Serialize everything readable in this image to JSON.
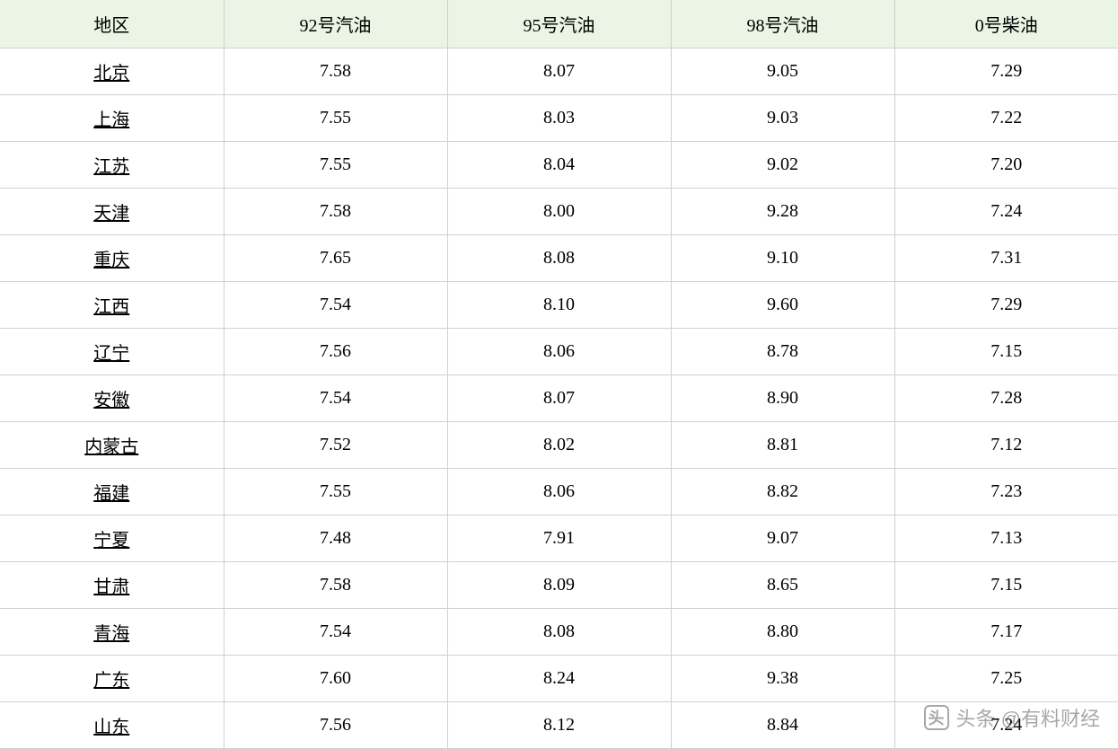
{
  "table": {
    "type": "table",
    "header_background": "#eaf5e5",
    "border_color": "#d0d0d0",
    "text_color": "#000000",
    "font_size": 20,
    "columns": [
      {
        "label": "地区",
        "is_link_column": true
      },
      {
        "label": "92号汽油",
        "is_link_column": false
      },
      {
        "label": "95号汽油",
        "is_link_column": false
      },
      {
        "label": "98号汽油",
        "is_link_column": false
      },
      {
        "label": "0号柴油",
        "is_link_column": false
      }
    ],
    "rows": [
      {
        "region": "北京",
        "p92": "7.58",
        "p95": "8.07",
        "p98": "9.05",
        "d0": "7.29"
      },
      {
        "region": "上海",
        "p92": "7.55",
        "p95": "8.03",
        "p98": "9.03",
        "d0": "7.22"
      },
      {
        "region": "江苏",
        "p92": "7.55",
        "p95": "8.04",
        "p98": "9.02",
        "d0": "7.20"
      },
      {
        "region": "天津",
        "p92": "7.58",
        "p95": "8.00",
        "p98": "9.28",
        "d0": "7.24"
      },
      {
        "region": "重庆",
        "p92": "7.65",
        "p95": "8.08",
        "p98": "9.10",
        "d0": "7.31"
      },
      {
        "region": "江西",
        "p92": "7.54",
        "p95": "8.10",
        "p98": "9.60",
        "d0": "7.29"
      },
      {
        "region": "辽宁",
        "p92": "7.56",
        "p95": "8.06",
        "p98": "8.78",
        "d0": "7.15"
      },
      {
        "region": "安徽",
        "p92": "7.54",
        "p95": "8.07",
        "p98": "8.90",
        "d0": "7.28"
      },
      {
        "region": "内蒙古",
        "p92": "7.52",
        "p95": "8.02",
        "p98": "8.81",
        "d0": "7.12"
      },
      {
        "region": "福建",
        "p92": "7.55",
        "p95": "8.06",
        "p98": "8.82",
        "d0": "7.23"
      },
      {
        "region": "宁夏",
        "p92": "7.48",
        "p95": "7.91",
        "p98": "9.07",
        "d0": "7.13"
      },
      {
        "region": "甘肃",
        "p92": "7.58",
        "p95": "8.09",
        "p98": "8.65",
        "d0": "7.15"
      },
      {
        "region": "青海",
        "p92": "7.54",
        "p95": "8.08",
        "p98": "8.80",
        "d0": "7.17"
      },
      {
        "region": "广东",
        "p92": "7.60",
        "p95": "8.24",
        "p98": "9.38",
        "d0": "7.25"
      },
      {
        "region": "山东",
        "p92": "7.56",
        "p95": "8.12",
        "p98": "8.84",
        "d0": "7.24"
      }
    ]
  },
  "watermark": {
    "icon_text": "头",
    "text": "头条 @有料财经",
    "color": "rgba(80, 80, 80, 0.5)"
  }
}
